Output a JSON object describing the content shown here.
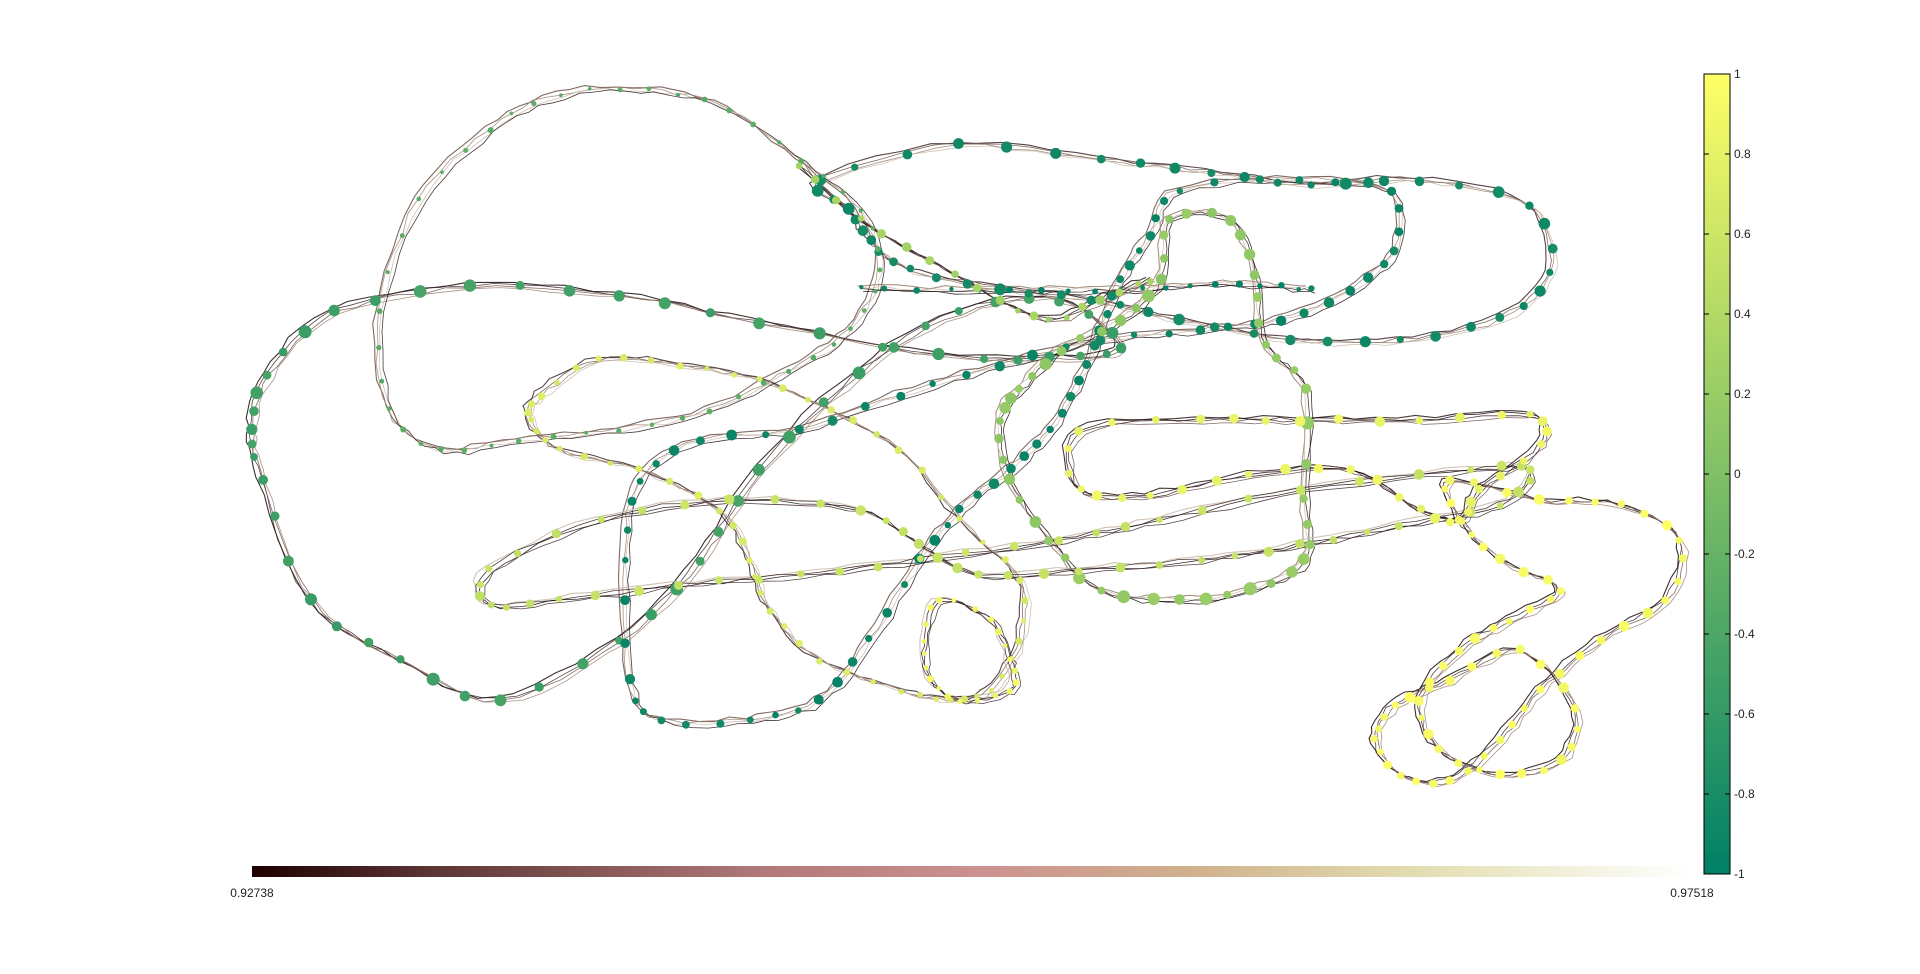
{
  "chart_data": {
    "type": "scatter",
    "title": "",
    "xlabel": "",
    "ylabel": "",
    "grid": false,
    "axes_visible": false,
    "edge_colorbar": {
      "orientation": "horizontal",
      "placement": "bottom",
      "colormap": "pink",
      "min_label": "0.92738",
      "max_label": "0.97518",
      "min": 0.92738,
      "max": 0.97518
    },
    "node_colorbar": {
      "orientation": "vertical",
      "placement": "right",
      "colormap": "summer",
      "min": -1,
      "max": 1,
      "ticks": [
        "1",
        "0.8",
        "0.6",
        "0.4",
        "0.2",
        "0",
        "-0.2",
        "-0.4",
        "-0.6",
        "-0.8",
        "-1"
      ]
    },
    "colors": {
      "summer_low": "#008066",
      "summer_high": "#ffff66",
      "edge_dark": "#1a0a0a",
      "edge_light": "#e8d8c8"
    }
  }
}
